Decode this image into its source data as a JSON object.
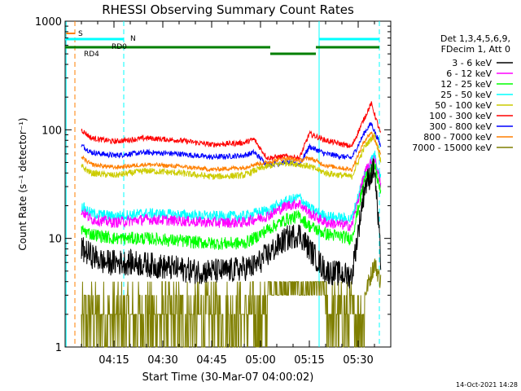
{
  "chart_data": {
    "type": "line",
    "title": "RHESSI Observing Summary Count Rates",
    "xlabel": "Start Time (30-Mar-07 04:00:02)",
    "ylabel": "Count Rate (s⁻¹ detector⁻¹)",
    "yscale": "log",
    "ylim": [
      1,
      1000
    ],
    "y_ticks": [
      {
        "v": 1,
        "label": "1"
      },
      {
        "v": 10,
        "label": "10"
      },
      {
        "v": 100,
        "label": "100"
      },
      {
        "v": 1000,
        "label": "1000"
      }
    ],
    "xlim_min": [
      0,
      100
    ],
    "x_ticks": [
      {
        "min": 15,
        "label": "04:15"
      },
      {
        "min": 30,
        "label": "04:30"
      },
      {
        "min": 45,
        "label": "04:45"
      },
      {
        "min": 60,
        "label": "05:00"
      },
      {
        "min": 75,
        "label": "05:15"
      },
      {
        "min": 90,
        "label": "05:30"
      }
    ],
    "legend_header": [
      "Det 1,3,4,5,6,9,",
      "FDecim 1, Att 0"
    ],
    "legend_position": "right",
    "footer_date": "14-Oct-2021 14:28",
    "flags": [
      {
        "label": "S",
        "color": "#ff7f00"
      },
      {
        "label": "N",
        "color": "#00ffff"
      },
      {
        "label": "RD0",
        "color": "#007f00"
      },
      {
        "label": "RD4",
        "color": "#007f00"
      }
    ],
    "series": [
      {
        "name": "3 - 6 keV",
        "color": "#000000",
        "noise": 0.12,
        "points": [
          [
            5,
            8
          ],
          [
            8,
            7
          ],
          [
            12,
            6
          ],
          [
            20,
            6
          ],
          [
            30,
            5.5
          ],
          [
            40,
            5
          ],
          [
            50,
            5
          ],
          [
            58,
            5.5
          ],
          [
            62,
            7
          ],
          [
            68,
            10
          ],
          [
            72,
            11
          ],
          [
            75,
            8
          ],
          [
            80,
            5
          ],
          [
            88,
            4.5
          ],
          [
            92,
            30
          ],
          [
            95,
            45
          ],
          [
            97,
            6
          ]
        ]
      },
      {
        "name": "6 - 12 keV",
        "color": "#ff00ff",
        "noise": 0.05,
        "points": [
          [
            5,
            18
          ],
          [
            8,
            15
          ],
          [
            15,
            14
          ],
          [
            25,
            15
          ],
          [
            35,
            14.5
          ],
          [
            45,
            14
          ],
          [
            55,
            14
          ],
          [
            58,
            15
          ],
          [
            62,
            16
          ],
          [
            68,
            20
          ],
          [
            72,
            21
          ],
          [
            75,
            17
          ],
          [
            80,
            14
          ],
          [
            88,
            13
          ],
          [
            92,
            40
          ],
          [
            95,
            55
          ],
          [
            97,
            30
          ]
        ]
      },
      {
        "name": "12 - 25 keV",
        "color": "#00ff00",
        "noise": 0.06,
        "points": [
          [
            5,
            12
          ],
          [
            8,
            11
          ],
          [
            15,
            10
          ],
          [
            25,
            10
          ],
          [
            35,
            9.5
          ],
          [
            45,
            9
          ],
          [
            55,
            9
          ],
          [
            58,
            10
          ],
          [
            62,
            12
          ],
          [
            68,
            15
          ],
          [
            72,
            16
          ],
          [
            75,
            13
          ],
          [
            80,
            11
          ],
          [
            88,
            10
          ],
          [
            92,
            35
          ],
          [
            95,
            48
          ],
          [
            97,
            25
          ]
        ]
      },
      {
        "name": "25 - 50 keV",
        "color": "#00ffff",
        "noise": 0.05,
        "points": [
          [
            5,
            20
          ],
          [
            8,
            17
          ],
          [
            15,
            16
          ],
          [
            25,
            17
          ],
          [
            35,
            16.5
          ],
          [
            45,
            16
          ],
          [
            55,
            16
          ],
          [
            58,
            17
          ],
          [
            62,
            18
          ],
          [
            68,
            22
          ],
          [
            72,
            24
          ],
          [
            75,
            19
          ],
          [
            80,
            16
          ],
          [
            88,
            15
          ],
          [
            92,
            40
          ],
          [
            95,
            60
          ],
          [
            97,
            35
          ]
        ]
      },
      {
        "name": "50 - 100 keV",
        "color": "#cccc00",
        "noise": 0.03,
        "points": [
          [
            5,
            46
          ],
          [
            8,
            40
          ],
          [
            15,
            38
          ],
          [
            25,
            42
          ],
          [
            35,
            40
          ],
          [
            45,
            37
          ],
          [
            55,
            38
          ],
          [
            58,
            42
          ],
          [
            62,
            46
          ],
          [
            68,
            50
          ],
          [
            72,
            48
          ],
          [
            75,
            46
          ],
          [
            80,
            40
          ],
          [
            88,
            37
          ],
          [
            92,
            70
          ],
          [
            95,
            90
          ],
          [
            97,
            50
          ]
        ]
      },
      {
        "name": "100 - 300 keV",
        "color": "#ff0000",
        "noise": 0.025,
        "points": [
          [
            5,
            100
          ],
          [
            8,
            84
          ],
          [
            15,
            78
          ],
          [
            25,
            84
          ],
          [
            35,
            80
          ],
          [
            45,
            73
          ],
          [
            55,
            76
          ],
          [
            58,
            82
          ],
          [
            62,
            55
          ],
          [
            68,
            57
          ],
          [
            72,
            55
          ],
          [
            75,
            92
          ],
          [
            80,
            80
          ],
          [
            88,
            70
          ],
          [
            92,
            130
          ],
          [
            94,
            175
          ],
          [
            97,
            90
          ]
        ]
      },
      {
        "name": "300 - 800 keV",
        "color": "#0000ff",
        "noise": 0.025,
        "points": [
          [
            5,
            72
          ],
          [
            8,
            62
          ],
          [
            15,
            58
          ],
          [
            25,
            62
          ],
          [
            35,
            60
          ],
          [
            45,
            56
          ],
          [
            55,
            58
          ],
          [
            58,
            62
          ],
          [
            62,
            48
          ],
          [
            68,
            50
          ],
          [
            72,
            48
          ],
          [
            75,
            70
          ],
          [
            80,
            60
          ],
          [
            88,
            55
          ],
          [
            92,
            95
          ],
          [
            94,
            115
          ],
          [
            97,
            70
          ]
        ]
      },
      {
        "name": "800 - 7000 keV",
        "color": "#ff7f00",
        "noise": 0.02,
        "points": [
          [
            5,
            56
          ],
          [
            8,
            48
          ],
          [
            15,
            45
          ],
          [
            25,
            48
          ],
          [
            35,
            46
          ],
          [
            45,
            43
          ],
          [
            55,
            45
          ],
          [
            58,
            48
          ],
          [
            62,
            50
          ],
          [
            68,
            55
          ],
          [
            72,
            52
          ],
          [
            75,
            55
          ],
          [
            80,
            47
          ],
          [
            88,
            43
          ],
          [
            92,
            80
          ],
          [
            94,
            95
          ],
          [
            97,
            60
          ]
        ]
      },
      {
        "name": "7000 - 15000 keV",
        "color": "#7f7f00",
        "noise": 0,
        "points": [
          [
            5,
            2
          ],
          [
            10,
            1.8
          ],
          [
            20,
            1.8
          ],
          [
            30,
            1.6
          ],
          [
            40,
            1.5
          ],
          [
            50,
            1.5
          ],
          [
            58,
            1.8
          ],
          [
            62,
            2.5
          ],
          [
            70,
            3.5
          ],
          [
            75,
            3
          ],
          [
            80,
            2.5
          ],
          [
            88,
            2.2
          ],
          [
            92,
            3
          ],
          [
            95,
            6
          ],
          [
            97,
            4
          ]
        ]
      }
    ]
  }
}
